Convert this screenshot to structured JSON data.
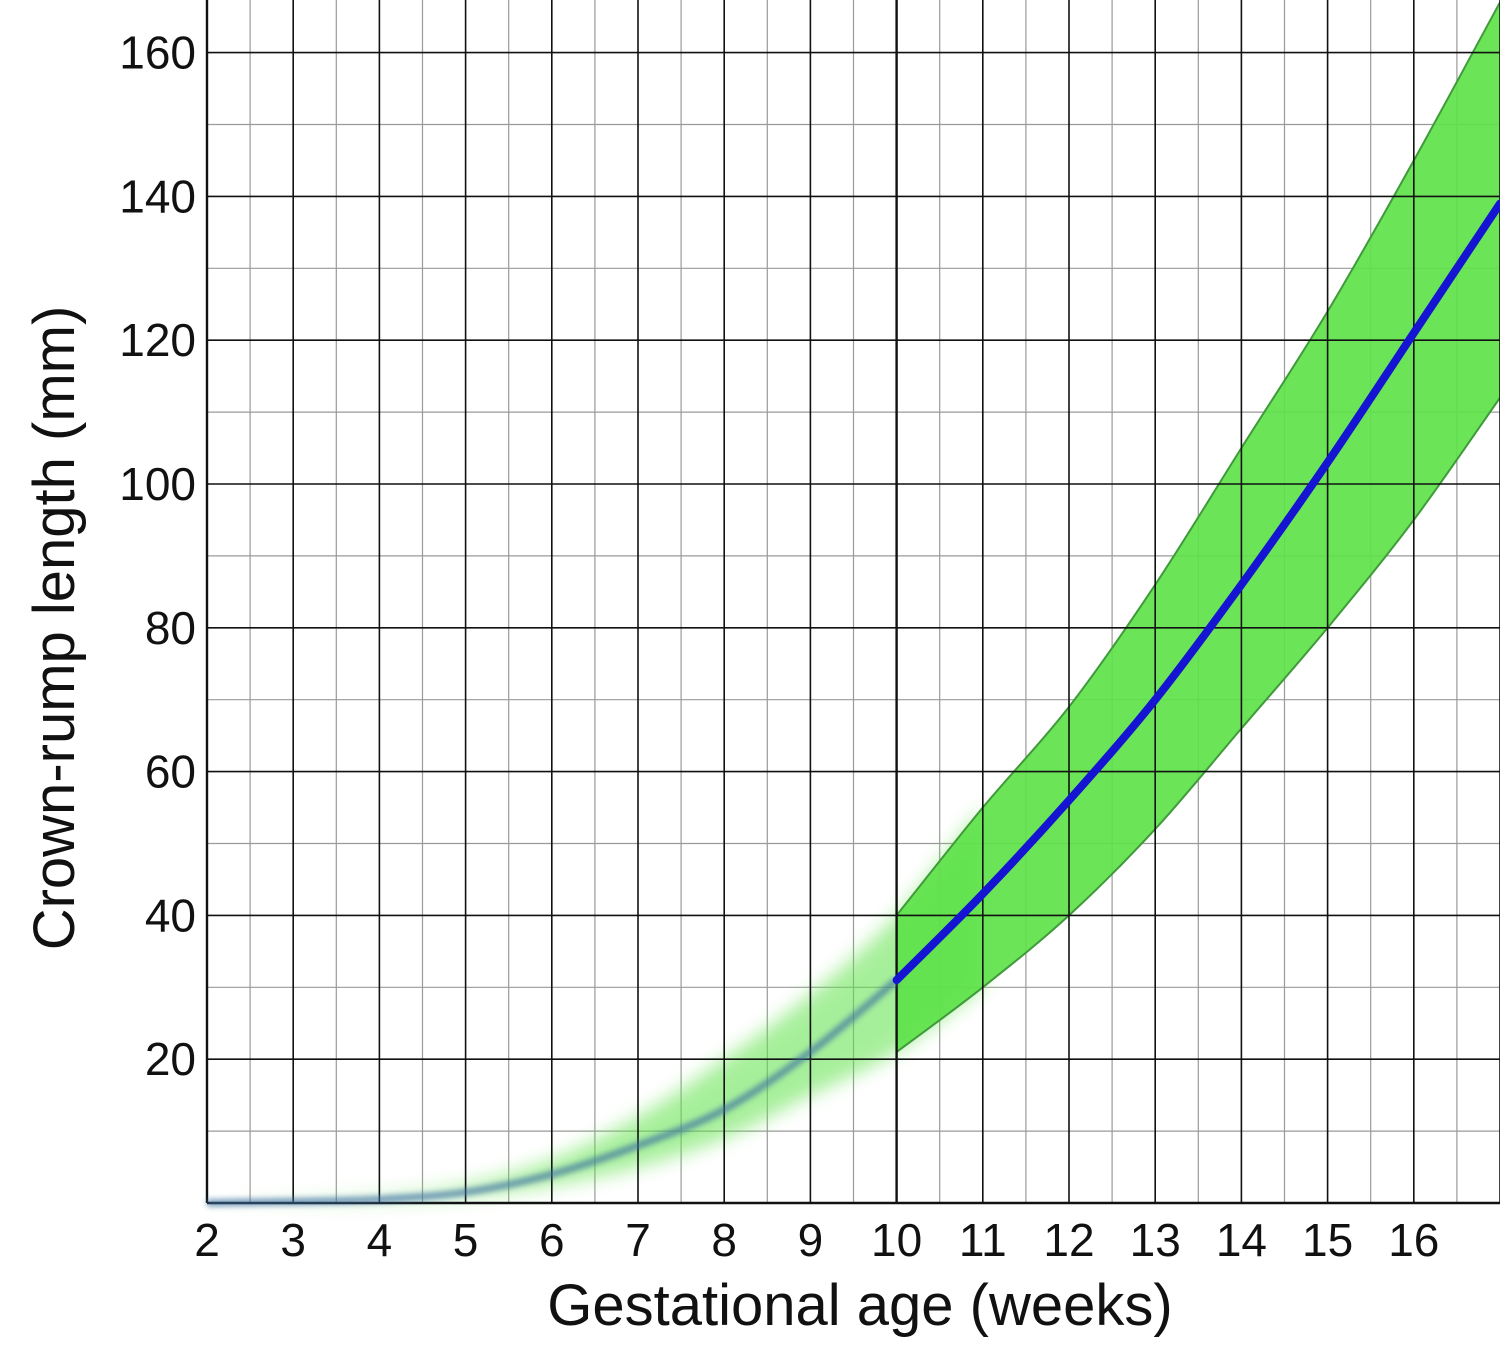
{
  "chart_data": {
    "type": "area",
    "xlabel": "Gestational age (weeks)",
    "ylabel": "Crown-rump length (mm)",
    "xlim": [
      2,
      17
    ],
    "ylim": [
      0,
      167
    ],
    "x_ticks": [
      "2",
      "3",
      "4",
      "5",
      "6",
      "7",
      "8",
      "9",
      "10",
      "11",
      "12",
      "13",
      "14",
      "15",
      "16"
    ],
    "y_ticks": [
      "20",
      "40",
      "60",
      "80",
      "100",
      "120",
      "140",
      "160"
    ],
    "grid": true,
    "colors": {
      "median_line": "#1414d2",
      "band_fill": "#5ee24a",
      "band_edge": "#3f9a3a",
      "grid_major": "#111111",
      "grid_minor": "#9a9a9a"
    },
    "x": [
      2,
      3,
      4,
      5,
      6,
      7,
      8,
      9,
      10,
      11,
      12,
      13,
      14,
      15,
      16,
      17
    ],
    "median": [
      0,
      0.2,
      0.5,
      1.5,
      4,
      8,
      13,
      21,
      31,
      43,
      56,
      70,
      86,
      103,
      121,
      139
    ],
    "lower": [
      0,
      0.1,
      0.3,
      1,
      2.5,
      5,
      9,
      15,
      21,
      30,
      40,
      52,
      66,
      80,
      95,
      112
    ],
    "upper": [
      0,
      0.4,
      1,
      2.5,
      6,
      12,
      20,
      29,
      40,
      55,
      69,
      86,
      105,
      124,
      145,
      167
    ],
    "band_note_faded_before_week": 10
  }
}
